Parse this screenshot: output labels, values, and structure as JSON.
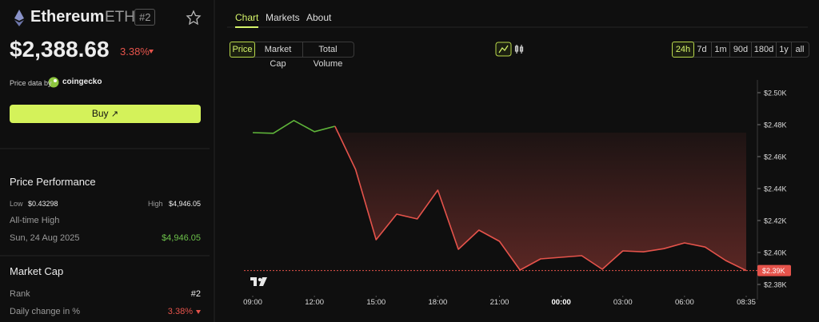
{
  "coin": {
    "name": "Ethereum",
    "symbol": "ETH",
    "rank": "#2"
  },
  "price": {
    "value": "$2,388.68",
    "change": "3.38%"
  },
  "source": {
    "prefix": "Price data by",
    "name": "coingecko"
  },
  "buy_button": "Buy",
  "performance": {
    "title": "Price Performance",
    "low_label": "Low",
    "low": "$0.43298",
    "high_label": "High",
    "high": "$4,946.05",
    "ath_label": "All-time High",
    "ath_date": "Sun, 24 Aug 2025",
    "ath_value": "$4,946.05"
  },
  "market_cap": {
    "title": "Market Cap",
    "rank_label": "Rank",
    "rank": "#2",
    "change_label": "Daily change in %",
    "change": "3.38%"
  },
  "tabs": [
    "Chart",
    "Markets",
    "About"
  ],
  "metric_buttons": [
    "Price",
    "Market Cap",
    "Total Volume"
  ],
  "range_buttons": [
    "24h",
    "7d",
    "1m",
    "90d",
    "180d",
    "1y",
    "all"
  ],
  "chart_data": {
    "type": "line",
    "x": [
      0,
      1,
      2,
      3,
      4,
      5,
      6,
      7,
      8,
      9,
      10,
      11,
      12,
      13,
      14,
      15,
      16,
      17,
      18,
      19,
      20,
      21,
      22,
      23,
      24
    ],
    "series": [
      {
        "color": "#5fb53a",
        "values": [
          2475,
          2474.6,
          2482.6,
          2475.6,
          2479,
          null,
          null,
          null,
          null,
          null,
          null,
          null,
          null,
          null,
          null,
          null,
          null,
          null,
          null,
          null,
          null,
          null,
          null,
          null,
          null
        ]
      },
      {
        "color": "#e5534b",
        "values": [
          null,
          null,
          null,
          null,
          2479,
          2452,
          2408,
          2424,
          2421,
          2439,
          2402,
          2414,
          2407,
          2389,
          2396,
          2397,
          2398,
          2389.5,
          2401,
          2400.4,
          2402.4,
          2406,
          2403.4,
          2395,
          2388.68
        ]
      }
    ],
    "xlim": [
      0,
      24
    ],
    "xticks": [
      {
        "value": 0,
        "label": "09:00"
      },
      {
        "value": 3,
        "label": "12:00"
      },
      {
        "value": 6,
        "label": "15:00"
      },
      {
        "value": 9,
        "label": "18:00"
      },
      {
        "value": 12,
        "label": "21:00"
      },
      {
        "value": 15,
        "label": "00:00",
        "emphasis": true
      },
      {
        "value": 18,
        "label": "03:00"
      },
      {
        "value": 21,
        "label": "06:00"
      },
      {
        "value": 24,
        "label": "08:35"
      }
    ],
    "ylim": [
      2373,
      2508
    ],
    "yticks": [
      {
        "value": 2380,
        "label": "$2.38K"
      },
      {
        "value": 2400,
        "label": "$2.40K"
      },
      {
        "value": 2420,
        "label": "$2.42K"
      },
      {
        "value": 2440,
        "label": "$2.44K"
      },
      {
        "value": 2460,
        "label": "$2.46K"
      },
      {
        "value": 2480,
        "label": "$2.48K"
      },
      {
        "value": 2500,
        "label": "$2.50K"
      }
    ],
    "current": {
      "value": 2388.68,
      "label": "$2.39K",
      "color": "#e5534b"
    },
    "grid": false
  }
}
